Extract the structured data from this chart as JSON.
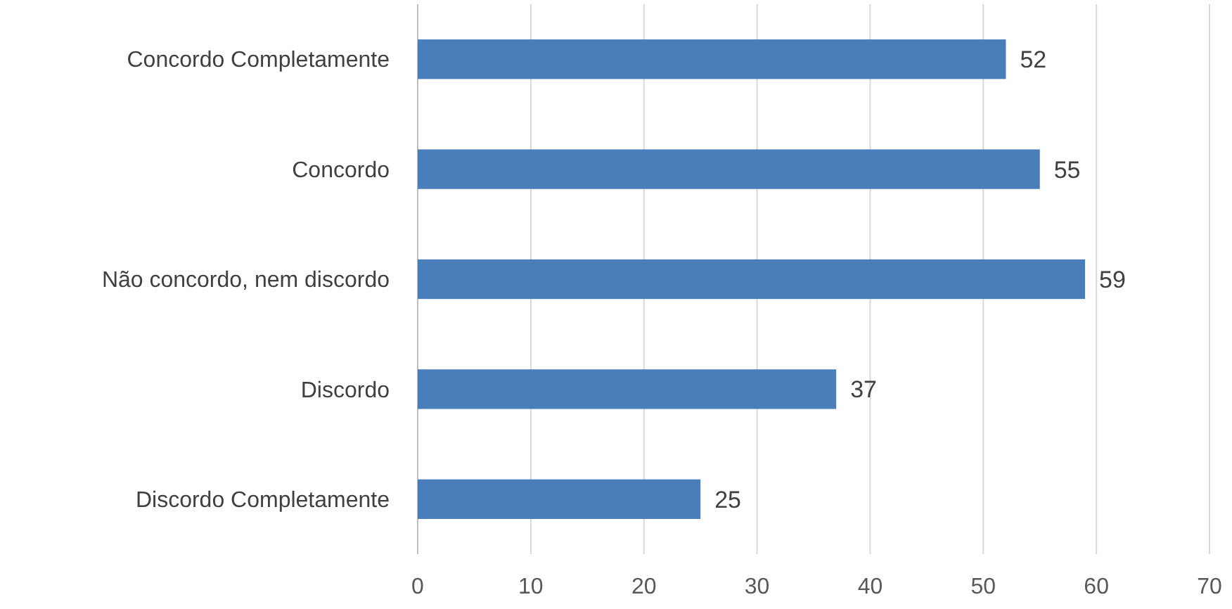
{
  "chart_data": {
    "type": "bar",
    "orientation": "horizontal",
    "categories": [
      "Concordo Completamente",
      "Concordo",
      "Não concordo, nem discordo",
      "Discordo",
      "Discordo Completamente"
    ],
    "values": [
      52,
      55,
      59,
      37,
      25
    ],
    "color": "#4a7ebb",
    "xlim": [
      0,
      70
    ],
    "xticks": [
      0,
      10,
      20,
      30,
      40,
      50,
      60,
      70
    ],
    "grid": "x",
    "data_labels": true
  }
}
